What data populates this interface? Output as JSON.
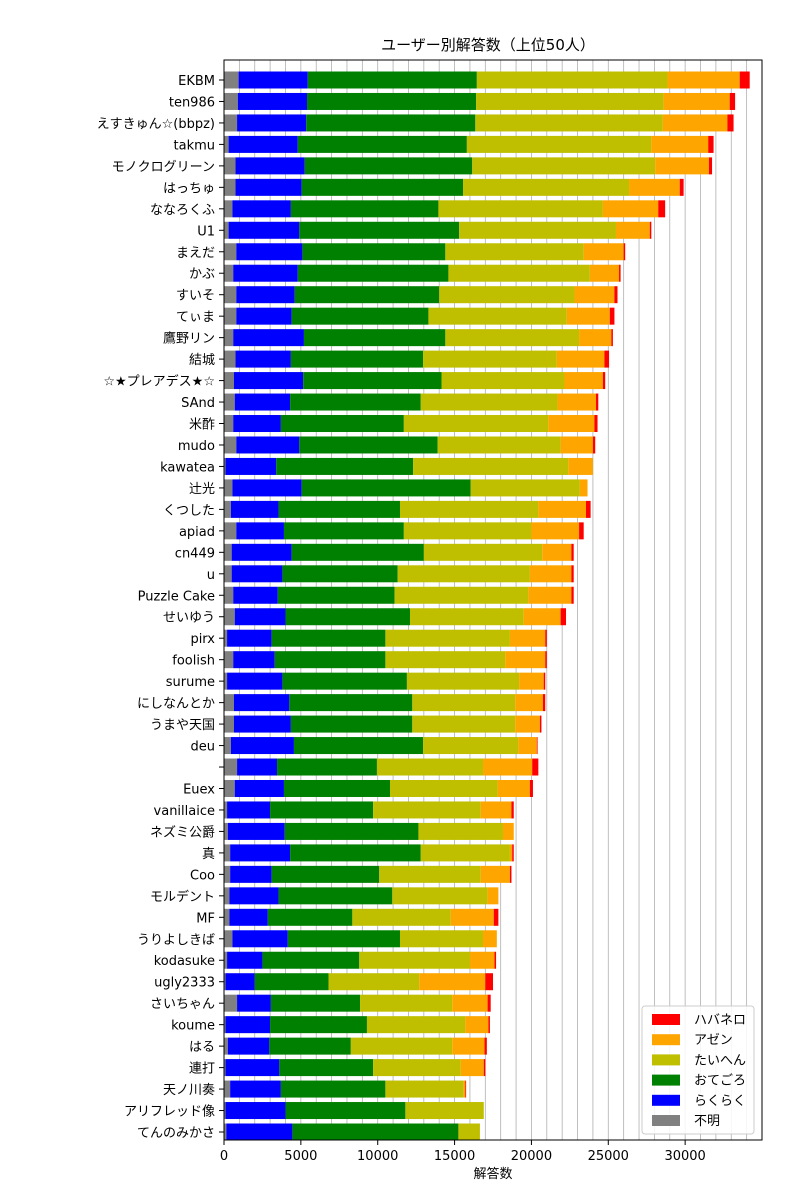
{
  "chart_data": {
    "type": "bar",
    "orientation": "horizontal",
    "stacked": true,
    "title": "ユーザー別解答数（上位50人）",
    "xlabel": "解答数",
    "ylabel": "",
    "xlim": [
      0,
      35000
    ],
    "xticks": [
      0,
      5000,
      10000,
      15000,
      20000,
      25000,
      30000
    ],
    "grid": "vertical",
    "legend_position": "bottom-right",
    "legend_order": [
      "ハバネロ",
      "アゼン",
      "たいへん",
      "おてごろ",
      "らくらく",
      "不明"
    ],
    "categories": [
      "EKBM",
      "ten986",
      "えすきゅん☆(bbpz)",
      "takmu",
      "モノクログリーン",
      "はっちゅ",
      "ななろくふ",
      "U1",
      "まえだ",
      "かぶ",
      "すいそ",
      "てぃま",
      "鷹野リン",
      "結城",
      "☆★プレアデス★☆",
      "SAnd",
      "米酢",
      "mudo",
      "kawatea",
      "辻光",
      "くつした",
      "apiad",
      "cn449",
      "u",
      "Puzzle Cake",
      "せいゆう",
      "pirx",
      "foolish",
      "surume",
      "にしなんとか",
      "うまや天国",
      "deu",
      "",
      "Euex",
      "vanillaice",
      "ネズミ公爵",
      "真",
      "Coo",
      "モルデント",
      "MF",
      "うりよしきば",
      "kodasuke",
      "ugly2333",
      "さいちゃん",
      "koume",
      "はる",
      "連打",
      "天ノ川奏",
      "アリフレッド像",
      "てんのみかさ"
    ],
    "series": [
      {
        "name": "不明",
        "color": "#808080",
        "values": [
          950,
          900,
          850,
          300,
          750,
          750,
          550,
          300,
          800,
          600,
          800,
          800,
          600,
          750,
          650,
          700,
          600,
          800,
          100,
          550,
          450,
          800,
          500,
          500,
          600,
          700,
          200,
          600,
          200,
          650,
          650,
          450,
          850,
          700,
          200,
          250,
          400,
          400,
          350,
          350,
          550,
          200,
          100,
          850,
          100,
          250,
          100,
          400,
          100,
          150
        ]
      },
      {
        "name": "らくらく",
        "color": "#0000ff",
        "values": [
          4500,
          4500,
          4500,
          4500,
          4500,
          4300,
          3800,
          4600,
          4300,
          4200,
          3800,
          3600,
          4600,
          3600,
          4500,
          3600,
          3100,
          4100,
          3300,
          4500,
          3100,
          3100,
          3900,
          3300,
          2900,
          3300,
          2900,
          2700,
          3600,
          3600,
          3700,
          4100,
          2600,
          3200,
          2800,
          3700,
          3900,
          2700,
          3200,
          2500,
          3600,
          2300,
          1900,
          2200,
          2900,
          2700,
          3500,
          3300,
          3900,
          4300
        ]
      },
      {
        "name": "おてごろ",
        "color": "#008000",
        "values": [
          11000,
          11000,
          11000,
          11000,
          10900,
          10500,
          9600,
          10400,
          9300,
          9800,
          9400,
          8900,
          9200,
          8600,
          9000,
          8500,
          8000,
          9000,
          8900,
          11000,
          7900,
          7800,
          8600,
          7500,
          7600,
          8100,
          7400,
          7200,
          8100,
          8000,
          7900,
          8400,
          6500,
          6900,
          6700,
          8700,
          8500,
          7000,
          7400,
          5500,
          7300,
          6300,
          4800,
          5800,
          6300,
          5300,
          6100,
          6800,
          7800,
          10800
        ]
      },
      {
        "name": "たいへん",
        "color": "#bfbf00",
        "values": [
          12400,
          12200,
          12200,
          12000,
          11900,
          10800,
          10700,
          10200,
          9000,
          9200,
          8800,
          9000,
          8700,
          8700,
          8000,
          8900,
          9400,
          8000,
          10100,
          7100,
          9000,
          8300,
          7700,
          8600,
          8700,
          7400,
          8100,
          7800,
          7300,
          6700,
          6700,
          6200,
          6900,
          7000,
          7000,
          5500,
          5800,
          6600,
          6200,
          6400,
          5400,
          7200,
          5900,
          6000,
          6400,
          6600,
          5700,
          5100,
          5100,
          1400
        ]
      },
      {
        "name": "アゼン",
        "color": "#ffa500",
        "values": [
          4700,
          4300,
          4200,
          3700,
          3500,
          3300,
          3600,
          2200,
          2600,
          1900,
          2600,
          2800,
          2100,
          3100,
          2500,
          2500,
          3000,
          2100,
          1600,
          500,
          3100,
          3100,
          1900,
          2700,
          2800,
          2400,
          2300,
          2600,
          1600,
          1800,
          1600,
          1200,
          3200,
          2100,
          2000,
          700,
          150,
          1900,
          700,
          2800,
          900,
          1600,
          4300,
          2300,
          1500,
          2100,
          1500,
          100,
          0,
          0
        ]
      },
      {
        "name": "ハバネロ",
        "color": "#ff0000",
        "values": [
          650,
          350,
          400,
          350,
          200,
          250,
          450,
          100,
          100,
          100,
          200,
          300,
          100,
          300,
          150,
          150,
          200,
          150,
          0,
          0,
          300,
          300,
          150,
          150,
          150,
          350,
          100,
          100,
          100,
          150,
          100,
          50,
          400,
          200,
          150,
          0,
          100,
          100,
          0,
          300,
          0,
          100,
          500,
          200,
          100,
          150,
          100,
          50,
          0,
          0
        ]
      }
    ]
  }
}
